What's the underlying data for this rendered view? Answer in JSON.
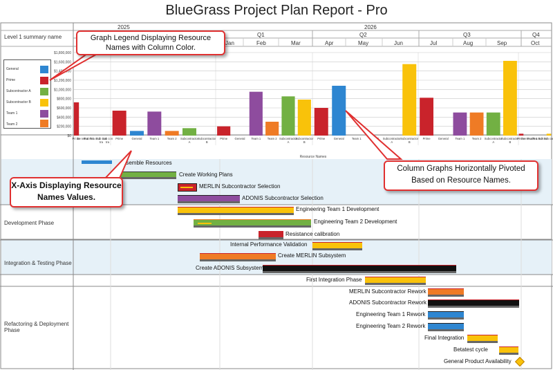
{
  "title": "BlueGrass Project Plan Report - Pro",
  "header": {
    "row_label": "Level 1 summary name",
    "year_left": "2025",
    "year": "2026",
    "quarters": [
      "Q1",
      "Q2",
      "Q3",
      "Q4"
    ],
    "months": [
      "Jan",
      "Feb",
      "Mar",
      "Apr",
      "May",
      "Jun",
      "Jul",
      "Aug",
      "Sep",
      "Oct"
    ]
  },
  "legend": {
    "items": [
      "General",
      "Prime",
      "Subcontractor A",
      "Subcontractor B",
      "Team 1",
      "Team 2"
    ],
    "colors": [
      "#2e86d1",
      "#c9232b",
      "#72b043",
      "#f9c20a",
      "#8e4c9e",
      "#ef7b25"
    ]
  },
  "callouts": {
    "legend_note": "Graph Legend Displaying Resource Names with Column Color.",
    "xaxis_note": "X-Axis Displaying Resource Names Values.",
    "pivot_note": "Column Graphs Horizontally Pivoted Based on Resource Names."
  },
  "chart_data": {
    "type": "bar",
    "ylim": [
      0,
      1800000
    ],
    "y_ticks": [
      "$0",
      "$200,000",
      "$400,000",
      "$600,000",
      "$800,000",
      "$1,000,000",
      "$1,200,000",
      "$1,400,000",
      "$1,600,000",
      "$1,800,000"
    ],
    "xlabel": "Resource Names",
    "groups": [
      {
        "labels": [
          "Pri me",
          "Ge ner al",
          "Tea m 1",
          "Tea m 2",
          "Sub con tra",
          "Sub con tra"
        ],
        "values": [
          720000,
          0,
          0,
          0,
          0,
          0
        ]
      },
      {
        "labels": [
          "Prime",
          "General",
          "Team 1",
          "Team 2",
          "Subcontractor A",
          "Subcontractor B"
        ],
        "values": [
          540000,
          100000,
          520000,
          100000,
          160000,
          0
        ]
      },
      {
        "labels": [
          "Prime",
          "General",
          "Team 1",
          "Team 2",
          "Subcontractor A",
          "Subcontractor B"
        ],
        "values": [
          200000,
          0,
          950000,
          300000,
          850000,
          780000
        ]
      },
      {
        "labels": [
          "Prime",
          "General",
          "Team 1",
          "Team 2",
          "Subcontractor A",
          "Subcontractor B"
        ],
        "values": [
          600000,
          1080000,
          0,
          0,
          0,
          1550000
        ]
      },
      {
        "labels": [
          "Prime",
          "General",
          "Team 1",
          "Team 2",
          "Subcontractor A",
          "Subcontractor B"
        ],
        "values": [
          820000,
          0,
          500000,
          500000,
          500000,
          1620000
        ]
      },
      {
        "labels": [
          "Pri me",
          "Ge ner al",
          "Tea m 1",
          "Tea m 2",
          "Sub con",
          "Sub con"
        ],
        "values": [
          40000,
          0,
          0,
          0,
          0,
          40000
        ]
      }
    ],
    "series_colors": [
      "#c9232b",
      "#2e86d1",
      "#8e4c9e",
      "#ef7b25",
      "#72b043",
      "#f9c20a"
    ]
  },
  "phases": [
    {
      "name": ""
    },
    {
      "name": "Development Phase"
    },
    {
      "name": "Integration & Testing Phase"
    },
    {
      "name": "Refactoring & Deployment Phase"
    }
  ],
  "tasks": [
    "Assemble Resources",
    "Create Working Plans",
    "MERLIN Subcontractor Selection",
    "ADONIS Subcontractor Selection",
    "Engineering Team 1 Development",
    "Engineering Team 2 Development",
    "Resistance calibration",
    "Internal Performance Validation",
    "Create MERLIN Subsystem",
    "Create ADONIS Subsystem",
    "First Integration Phase",
    "MERLIN Subcontractor Rework",
    "ADONIS Subcontractor Rework",
    "Engineering Team 1 Rework",
    "Engineering Team 2 Rework",
    "Final Integration",
    "Betatest cycle",
    "General Product Availability"
  ]
}
